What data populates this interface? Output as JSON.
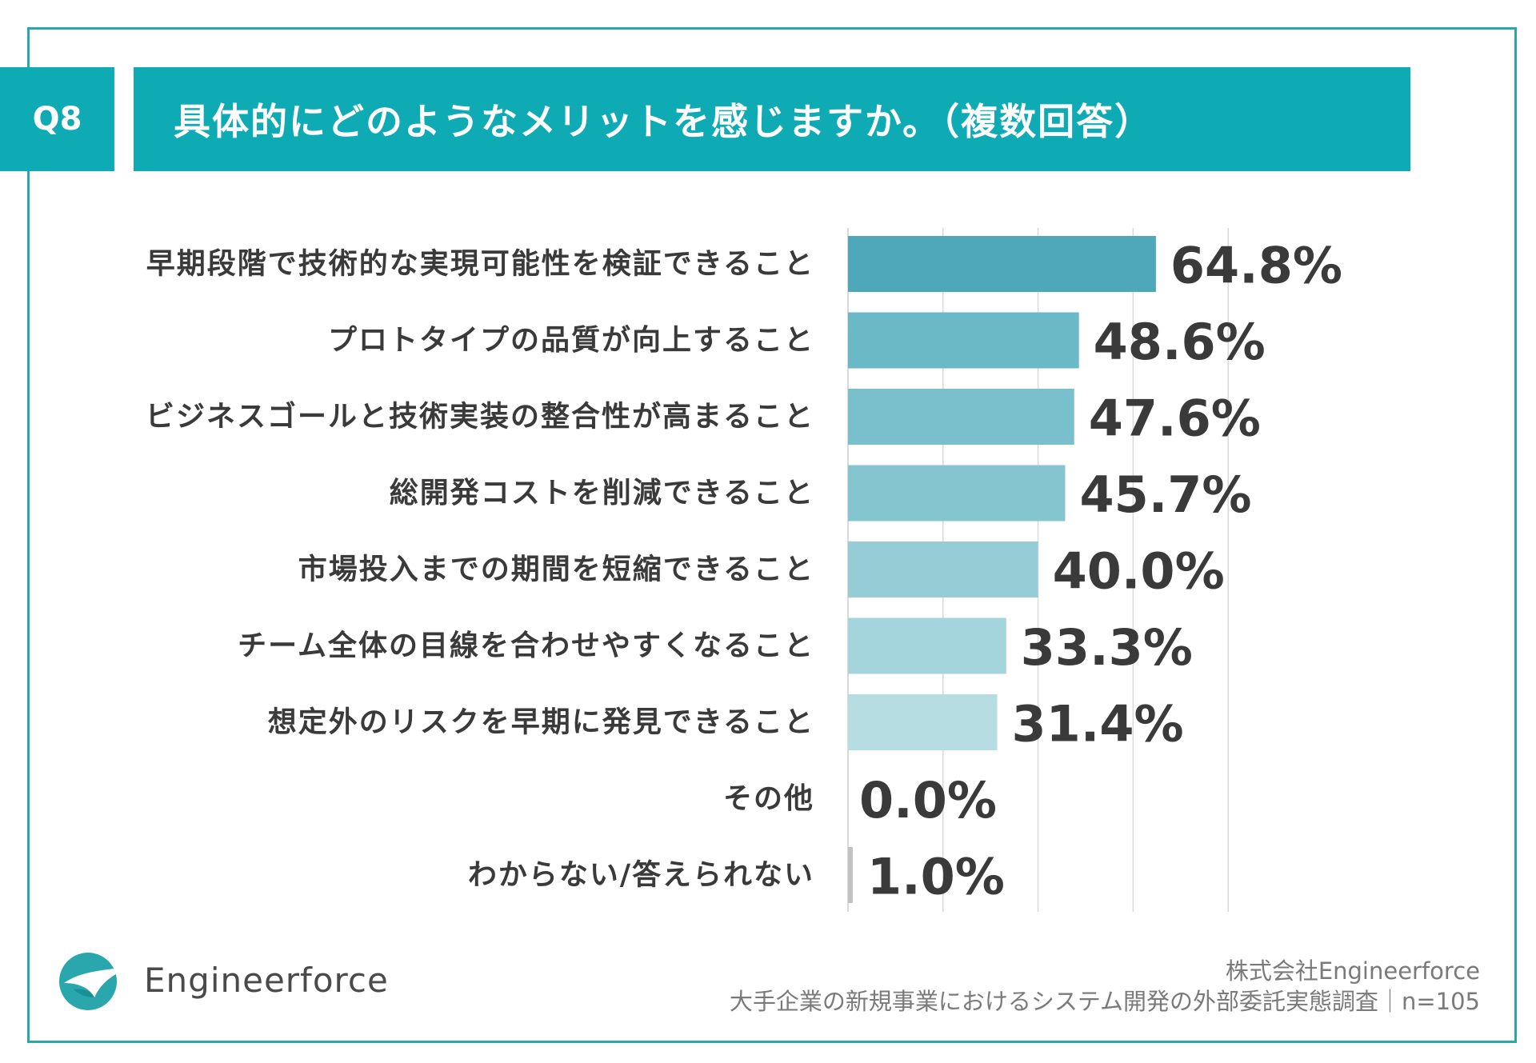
{
  "header": {
    "question_badge": "Q8",
    "question_text": "具体的にどのようなメリットを感じますか。（複数回答）"
  },
  "chart_data": {
    "type": "bar",
    "orientation": "horizontal",
    "categories": [
      "早期段階で技術的な実現可能性を検証できること",
      "プロトタイプの品質が向上すること",
      "ビジネスゴールと技術実装の整合性が高まること",
      "総開発コストを削減できること",
      "市場投入までの期間を短縮できること",
      "チーム全体の目線を合わせやすくなること",
      "想定外のリスクを早期に発見できること",
      "その他",
      "わからない/答えられない"
    ],
    "values": [
      64.8,
      48.6,
      47.6,
      45.7,
      40.0,
      33.3,
      31.4,
      0.0,
      1.0
    ],
    "value_labels": [
      "64.8%",
      "48.6%",
      "47.6%",
      "45.7%",
      "40.0%",
      "33.3%",
      "31.4%",
      "0.0%",
      "1.0%"
    ],
    "bar_colors": [
      "#4fa8b9",
      "#6bb8c6",
      "#79bfcc",
      "#84c5d0",
      "#95ccd6",
      "#a4d5dc",
      "#b6dde2",
      "#c8c8c8",
      "#c2c2c2"
    ],
    "xlim": [
      0,
      100
    ],
    "grid": true,
    "title": "",
    "xlabel": "",
    "ylabel": ""
  },
  "logo": {
    "name": "Engineerforce"
  },
  "footer": {
    "company": "株式会社Engineerforce",
    "survey": "大手企業の新規事業におけるシステム開発の外部委託実態調査｜n=105"
  },
  "colors": {
    "accent": "#0eabb4",
    "frame": "#2aa6ad",
    "grid": "#d9d9d9",
    "text": "#3a3a3a"
  }
}
